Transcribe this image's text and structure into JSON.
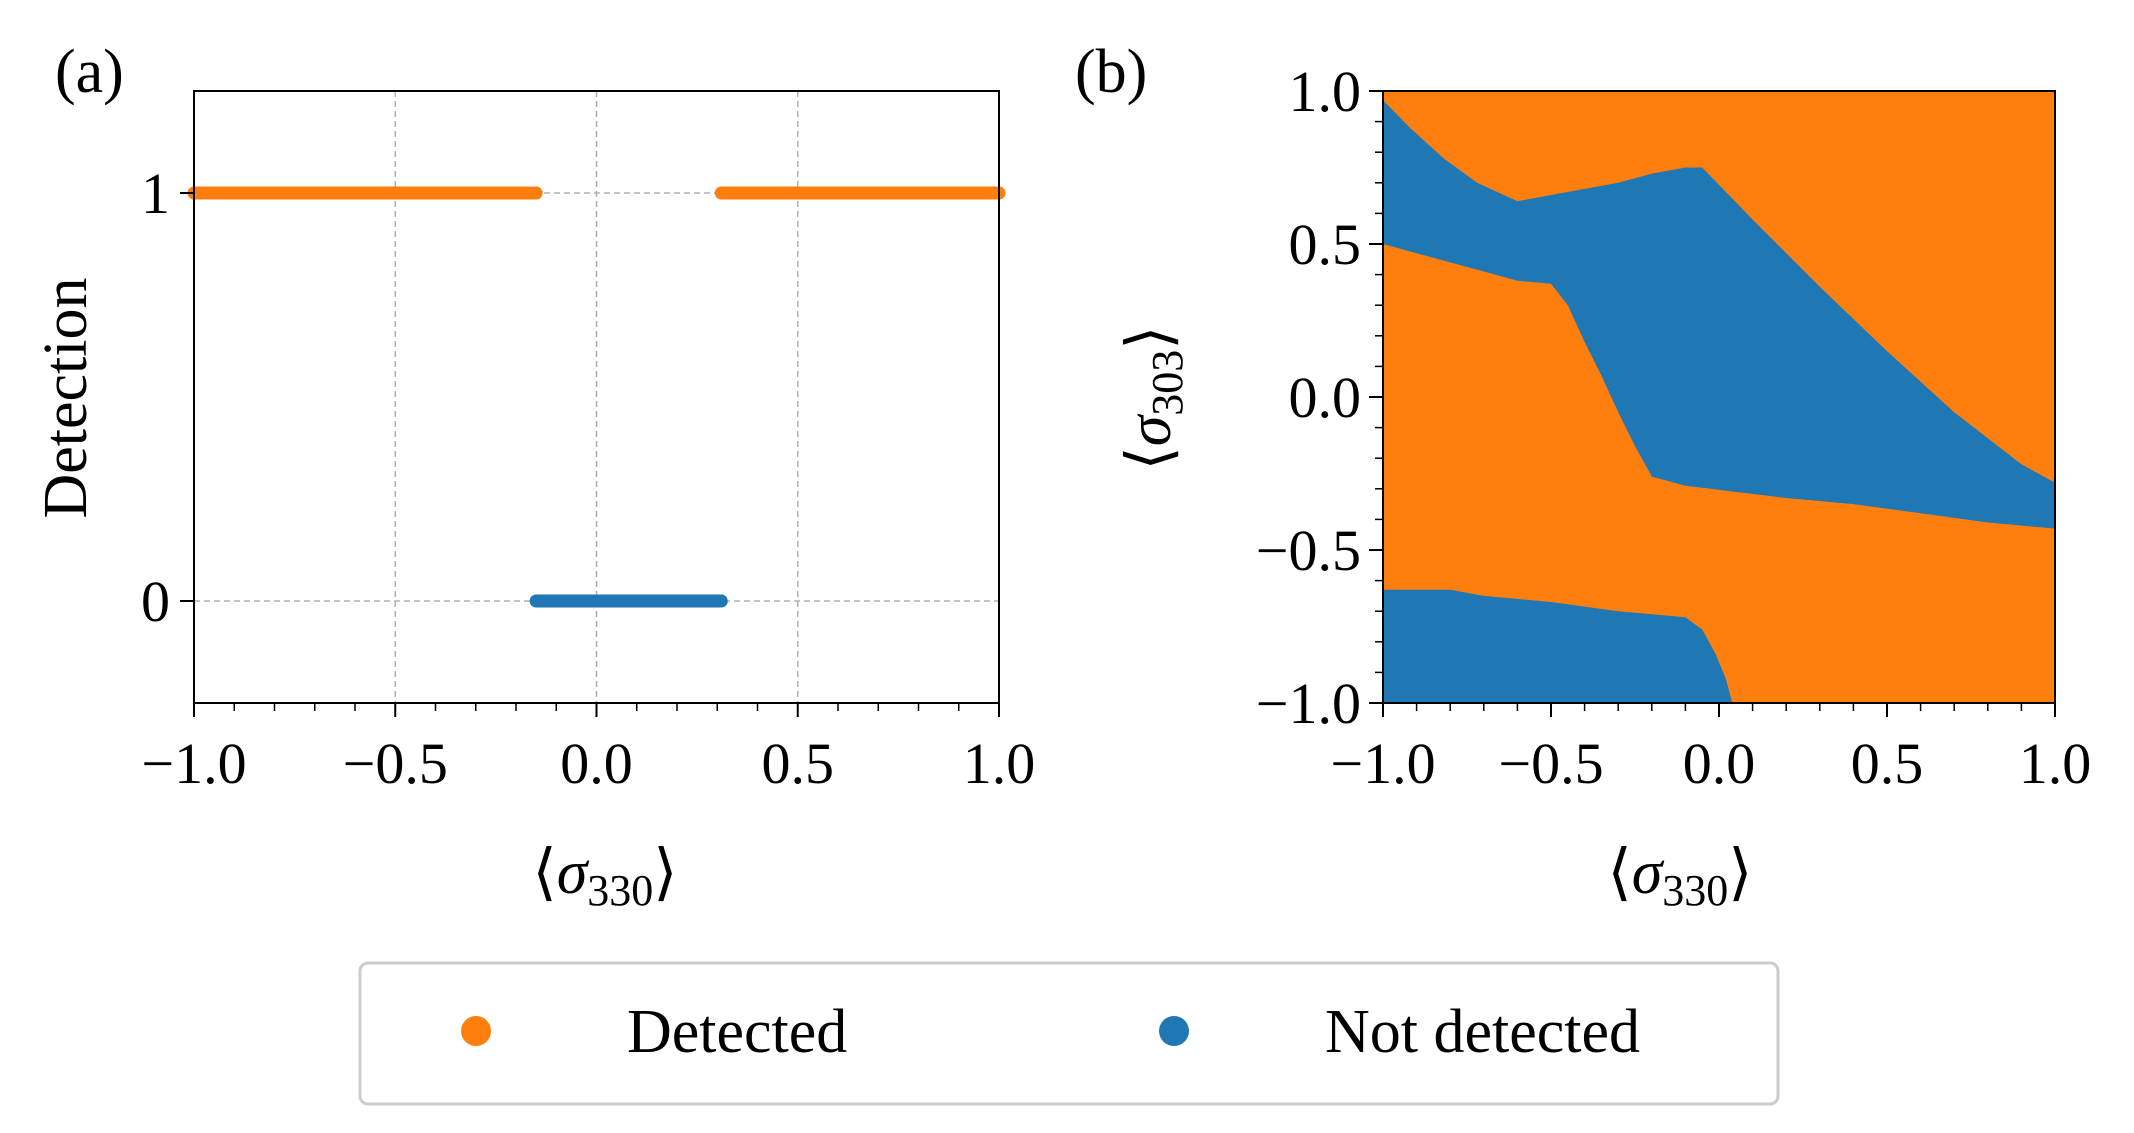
{
  "chart_data": [
    {
      "panel_label": "(a)",
      "type": "scatter",
      "xlabel_base": "σ",
      "xlabel_sub": "330",
      "ylabel": "Detection",
      "xlim": [
        -1.0,
        1.0
      ],
      "ylim": [
        -0.25,
        1.25
      ],
      "xticks": [
        {
          "value": -1.0,
          "label": "−1.0"
        },
        {
          "value": -0.5,
          "label": "−0.5"
        },
        {
          "value": 0.0,
          "label": "0.0"
        },
        {
          "value": 0.5,
          "label": "0.5"
        },
        {
          "value": 1.0,
          "label": "1.0"
        }
      ],
      "yticks": [
        {
          "value": 0,
          "label": "0"
        },
        {
          "value": 1,
          "label": "1"
        }
      ],
      "grid": true,
      "segments": [
        {
          "series": "Detected",
          "x_start": -1.0,
          "x_end": -0.15,
          "y": 1
        },
        {
          "series": "Not detected",
          "x_start": -0.15,
          "x_end": 0.31,
          "y": 0
        },
        {
          "series": "Detected",
          "x_start": 0.31,
          "x_end": 1.0,
          "y": 1
        }
      ]
    },
    {
      "panel_label": "(b)",
      "type": "heatmap",
      "xlabel_base": "σ",
      "xlabel_sub": "330",
      "ylabel_base": "σ",
      "ylabel_sub": "303",
      "xlim": [
        -1.0,
        1.0
      ],
      "ylim": [
        -1.0,
        1.0
      ],
      "xticks": [
        {
          "value": -1.0,
          "label": "−1.0"
        },
        {
          "value": -0.5,
          "label": "−0.5"
        },
        {
          "value": 0.0,
          "label": "0.0"
        },
        {
          "value": 0.5,
          "label": "0.5"
        },
        {
          "value": 1.0,
          "label": "1.0"
        }
      ],
      "yticks": [
        {
          "value": -1.0,
          "label": "−1.0"
        },
        {
          "value": -0.5,
          "label": "−0.5"
        },
        {
          "value": 0.0,
          "label": "0.0"
        },
        {
          "value": 0.5,
          "label": "0.5"
        },
        {
          "value": 1.0,
          "label": "1.0"
        }
      ],
      "background_series": "Detected",
      "regions": [
        {
          "series": "Not detected",
          "polygon": [
            [
              -1.0,
              0.97
            ],
            [
              -0.92,
              0.88
            ],
            [
              -0.82,
              0.78
            ],
            [
              -0.72,
              0.7
            ],
            [
              -0.6,
              0.64
            ],
            [
              -0.5,
              0.66
            ],
            [
              -0.4,
              0.68
            ],
            [
              -0.3,
              0.7
            ],
            [
              -0.2,
              0.73
            ],
            [
              -0.1,
              0.75
            ],
            [
              -0.05,
              0.75
            ],
            [
              0.1,
              0.58
            ],
            [
              0.3,
              0.36
            ],
            [
              0.5,
              0.15
            ],
            [
              0.7,
              -0.05
            ],
            [
              0.9,
              -0.22
            ],
            [
              1.0,
              -0.28
            ],
            [
              1.0,
              -0.43
            ],
            [
              0.8,
              -0.41
            ],
            [
              0.6,
              -0.38
            ],
            [
              0.4,
              -0.35
            ],
            [
              0.2,
              -0.33
            ],
            [
              0.05,
              -0.31
            ],
            [
              -0.1,
              -0.29
            ],
            [
              -0.2,
              -0.26
            ],
            [
              -0.25,
              -0.16
            ],
            [
              -0.3,
              -0.05
            ],
            [
              -0.35,
              0.07
            ],
            [
              -0.4,
              0.18
            ],
            [
              -0.45,
              0.3
            ],
            [
              -0.5,
              0.37
            ],
            [
              -0.6,
              0.38
            ],
            [
              -0.7,
              0.41
            ],
            [
              -0.8,
              0.44
            ],
            [
              -0.9,
              0.47
            ],
            [
              -1.0,
              0.5
            ]
          ]
        },
        {
          "series": "Not detected",
          "polygon": [
            [
              -1.0,
              -0.63
            ],
            [
              -0.8,
              -0.63
            ],
            [
              -0.7,
              -0.65
            ],
            [
              -0.5,
              -0.67
            ],
            [
              -0.3,
              -0.7
            ],
            [
              -0.1,
              -0.72
            ],
            [
              -0.05,
              -0.76
            ],
            [
              -0.01,
              -0.84
            ],
            [
              0.02,
              -0.92
            ],
            [
              0.04,
              -1.0
            ],
            [
              -1.0,
              -1.0
            ]
          ]
        }
      ]
    }
  ],
  "legend": {
    "placement": "bottom-center",
    "items": [
      {
        "label": "Detected",
        "color": "#ff7f0e"
      },
      {
        "label": "Not detected",
        "color": "#1f77b4"
      }
    ]
  },
  "colors": {
    "detected": "#ff7f0e",
    "not_detected": "#1f77b4",
    "grid": "#b0b0b0",
    "axis": "#000000"
  }
}
